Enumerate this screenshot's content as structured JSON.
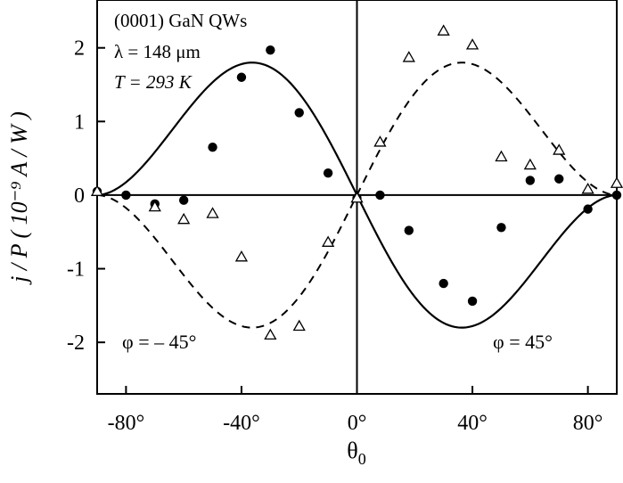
{
  "chart_data": {
    "type": "scatter",
    "title": "",
    "xlabel": "θ",
    "xlabel_sub": "0",
    "ylabel": "j / P   ( 10⁻⁹ A / W )",
    "xlim": [
      -90,
      90
    ],
    "ylim": [
      -2.7,
      2.65
    ],
    "x_ticks": [
      -80,
      -40,
      0,
      40,
      80
    ],
    "x_tick_labels": [
      "-80°",
      "-40°",
      "0°",
      "40°",
      "80°"
    ],
    "y_ticks": [
      2,
      1,
      0,
      -1,
      -2
    ],
    "y_tick_labels": [
      "2",
      "1",
      "0",
      "-1",
      "-2"
    ],
    "grid": false,
    "annotations": {
      "line1": "(0001) GaN QWs",
      "line2": "λ = 148 μm",
      "line3": "T = 293 K",
      "phi_left": "φ = – 45°",
      "phi_right": "φ = 45°"
    },
    "series": [
      {
        "marker": "filled-circle",
        "x": [
          -90,
          -80,
          -70,
          -60,
          -50,
          -40,
          -30,
          -20,
          -10,
          0,
          8,
          18,
          30,
          40,
          50,
          60,
          70,
          80,
          90
        ],
        "y": [
          0.05,
          0.0,
          -0.12,
          -0.07,
          0.65,
          1.6,
          1.97,
          1.12,
          0.3,
          -0.04,
          0.0,
          -0.48,
          -1.2,
          -1.44,
          -0.44,
          0.2,
          0.22,
          -0.19,
          0.0
        ]
      },
      {
        "marker": "open-triangle",
        "x": [
          -90,
          -70,
          -60,
          -50,
          -40,
          -30,
          -20,
          -10,
          0,
          8,
          18,
          30,
          40,
          50,
          60,
          70,
          80,
          90
        ],
        "y": [
          0.05,
          -0.16,
          -0.33,
          -0.25,
          -0.84,
          -1.9,
          -1.78,
          -0.64,
          -0.04,
          0.72,
          1.87,
          2.23,
          2.04,
          0.52,
          0.41,
          0.61,
          0.08,
          0.16
        ]
      },
      {
        "style": "solid",
        "curve": "-1.8 * sin(2θ) * sin(θ + 90°)^0.85",
        "amplitude": 1.8,
        "peak_x": 35
      },
      {
        "style": "dashed",
        "curve": "1.8 * sin(2θ) * sin(θ + 90°)^0.85",
        "amplitude": 1.8,
        "peak_x": 35
      }
    ]
  }
}
